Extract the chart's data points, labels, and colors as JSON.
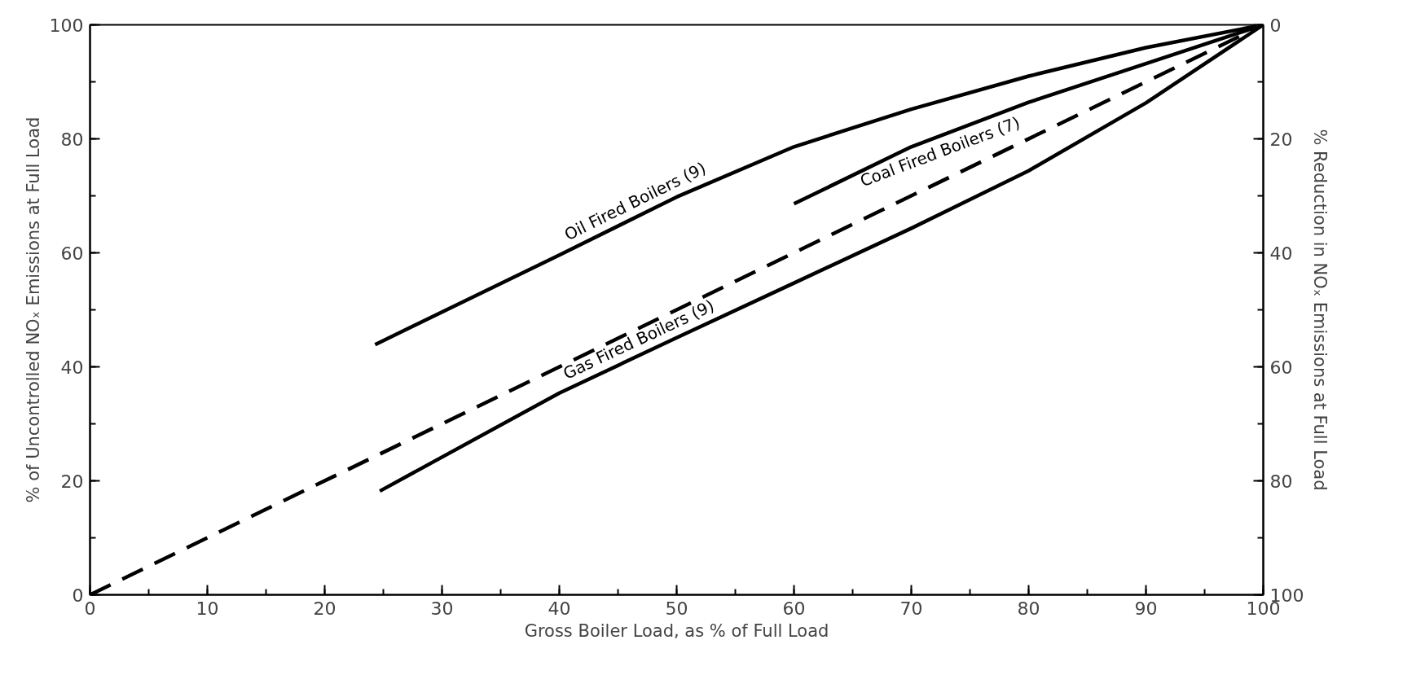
{
  "chart_data": {
    "type": "line",
    "xlabel": "Gross Boiler Load, as % of Full Load",
    "ylabel": "% of Uncontrolled NOₓ Emissions at Full Load",
    "y2label": "% Reduction in NOₓ Emissions at Full Load",
    "xlim": [
      0,
      100
    ],
    "ylim": [
      0,
      100
    ],
    "y2lim": [
      100,
      0
    ],
    "xticks": [
      0,
      10,
      20,
      30,
      40,
      50,
      60,
      70,
      80,
      90,
      100
    ],
    "yticks": [
      0,
      20,
      40,
      60,
      80,
      100
    ],
    "y2ticks": [
      0,
      20,
      40,
      60,
      80,
      100
    ],
    "grid": false,
    "series": [
      {
        "name": "Oil Fired Boilers (9)",
        "color": "#000000",
        "line_style": "solid",
        "x": [
          24.3,
          40,
          50,
          60,
          70,
          80,
          90,
          100
        ],
        "values": [
          43.9,
          59.6,
          69.8,
          78.6,
          85.2,
          91,
          96,
          100
        ]
      },
      {
        "name": "Coal Fired Boilers (7)",
        "color": "#000000",
        "line_style": "solid",
        "x": [
          60,
          70,
          80,
          90,
          100
        ],
        "values": [
          68.6,
          78.6,
          86.4,
          93.2,
          100
        ]
      },
      {
        "name": "Gas Fired Boilers (9)",
        "color": "#000000",
        "line_style": "solid",
        "x": [
          24.7,
          40,
          50,
          60,
          70,
          80,
          90,
          100
        ],
        "values": [
          18.2,
          35.4,
          45.1,
          54.7,
          64.3,
          74.4,
          86.3,
          100
        ]
      },
      {
        "color": "#000000",
        "line_style": "dashed",
        "x": [
          0,
          100
        ],
        "values": [
          0,
          100
        ]
      }
    ]
  }
}
